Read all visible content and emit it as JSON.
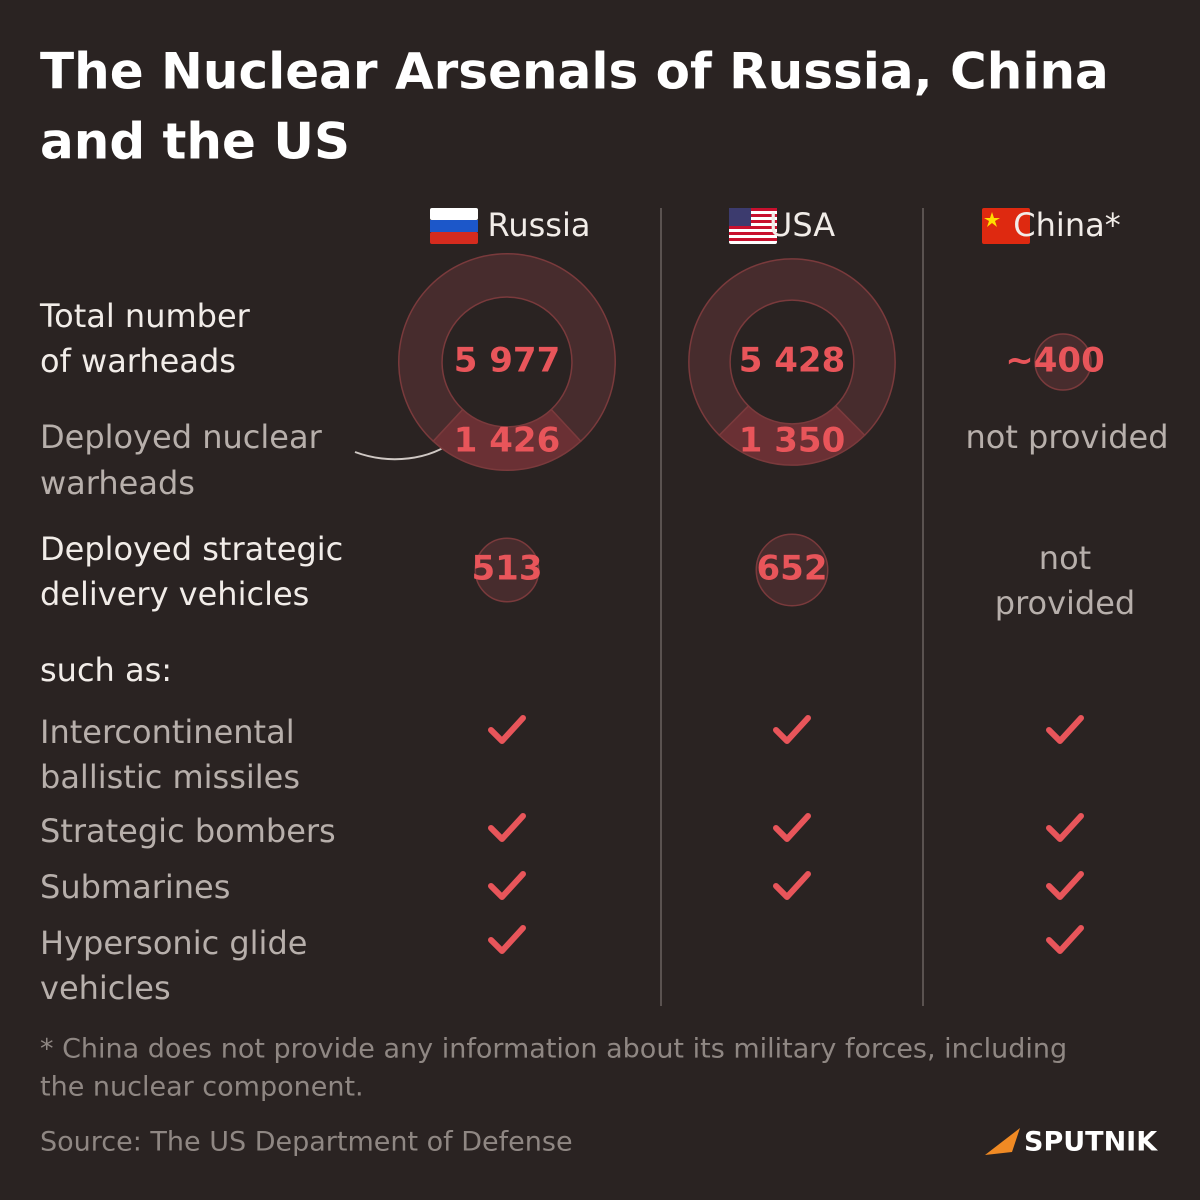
{
  "title_lines": [
    "The Nuclear Arsenals of Russia, China",
    "and the US"
  ],
  "countries": [
    {
      "name": "Russia",
      "total": {
        "value": 5977,
        "label": "5 977"
      },
      "deployed": {
        "value": 1426,
        "label": "1 426"
      },
      "vehicles": 513
    },
    {
      "name": "USA",
      "total": {
        "value": 5428,
        "label": "5 428"
      },
      "deployed": {
        "value": 1350,
        "label": "1 350"
      },
      "vehicles": 652
    },
    {
      "name": "China*",
      "total": {
        "value": 400,
        "label": "~400"
      },
      "deployed_text": "not provided",
      "vehicles_text": [
        "not",
        "provided"
      ]
    }
  ],
  "rows": {
    "total": [
      "Total number",
      "of warheads"
    ],
    "deployed": [
      "Deployed nuclear",
      "warheads"
    ],
    "vehicles": [
      "Deployed strategic",
      "delivery vehicles"
    ],
    "such_as": "such as:"
  },
  "types": [
    {
      "label": [
        "Intercontinental",
        "ballistic missiles"
      ],
      "has": [
        true,
        true,
        true
      ]
    },
    {
      "label": [
        "Strategic bombers"
      ],
      "has": [
        true,
        true,
        true
      ]
    },
    {
      "label": [
        "Submarines"
      ],
      "has": [
        true,
        true,
        true
      ]
    },
    {
      "label": [
        "Hypersonic glide",
        "vehicles"
      ],
      "has": [
        true,
        false,
        true
      ]
    }
  ],
  "footnote": [
    "* China does not provide any information about its military forces, including",
    "the nuclear component."
  ],
  "source": "Source: The US Department of Defense",
  "brand": "SPUTNIK"
}
